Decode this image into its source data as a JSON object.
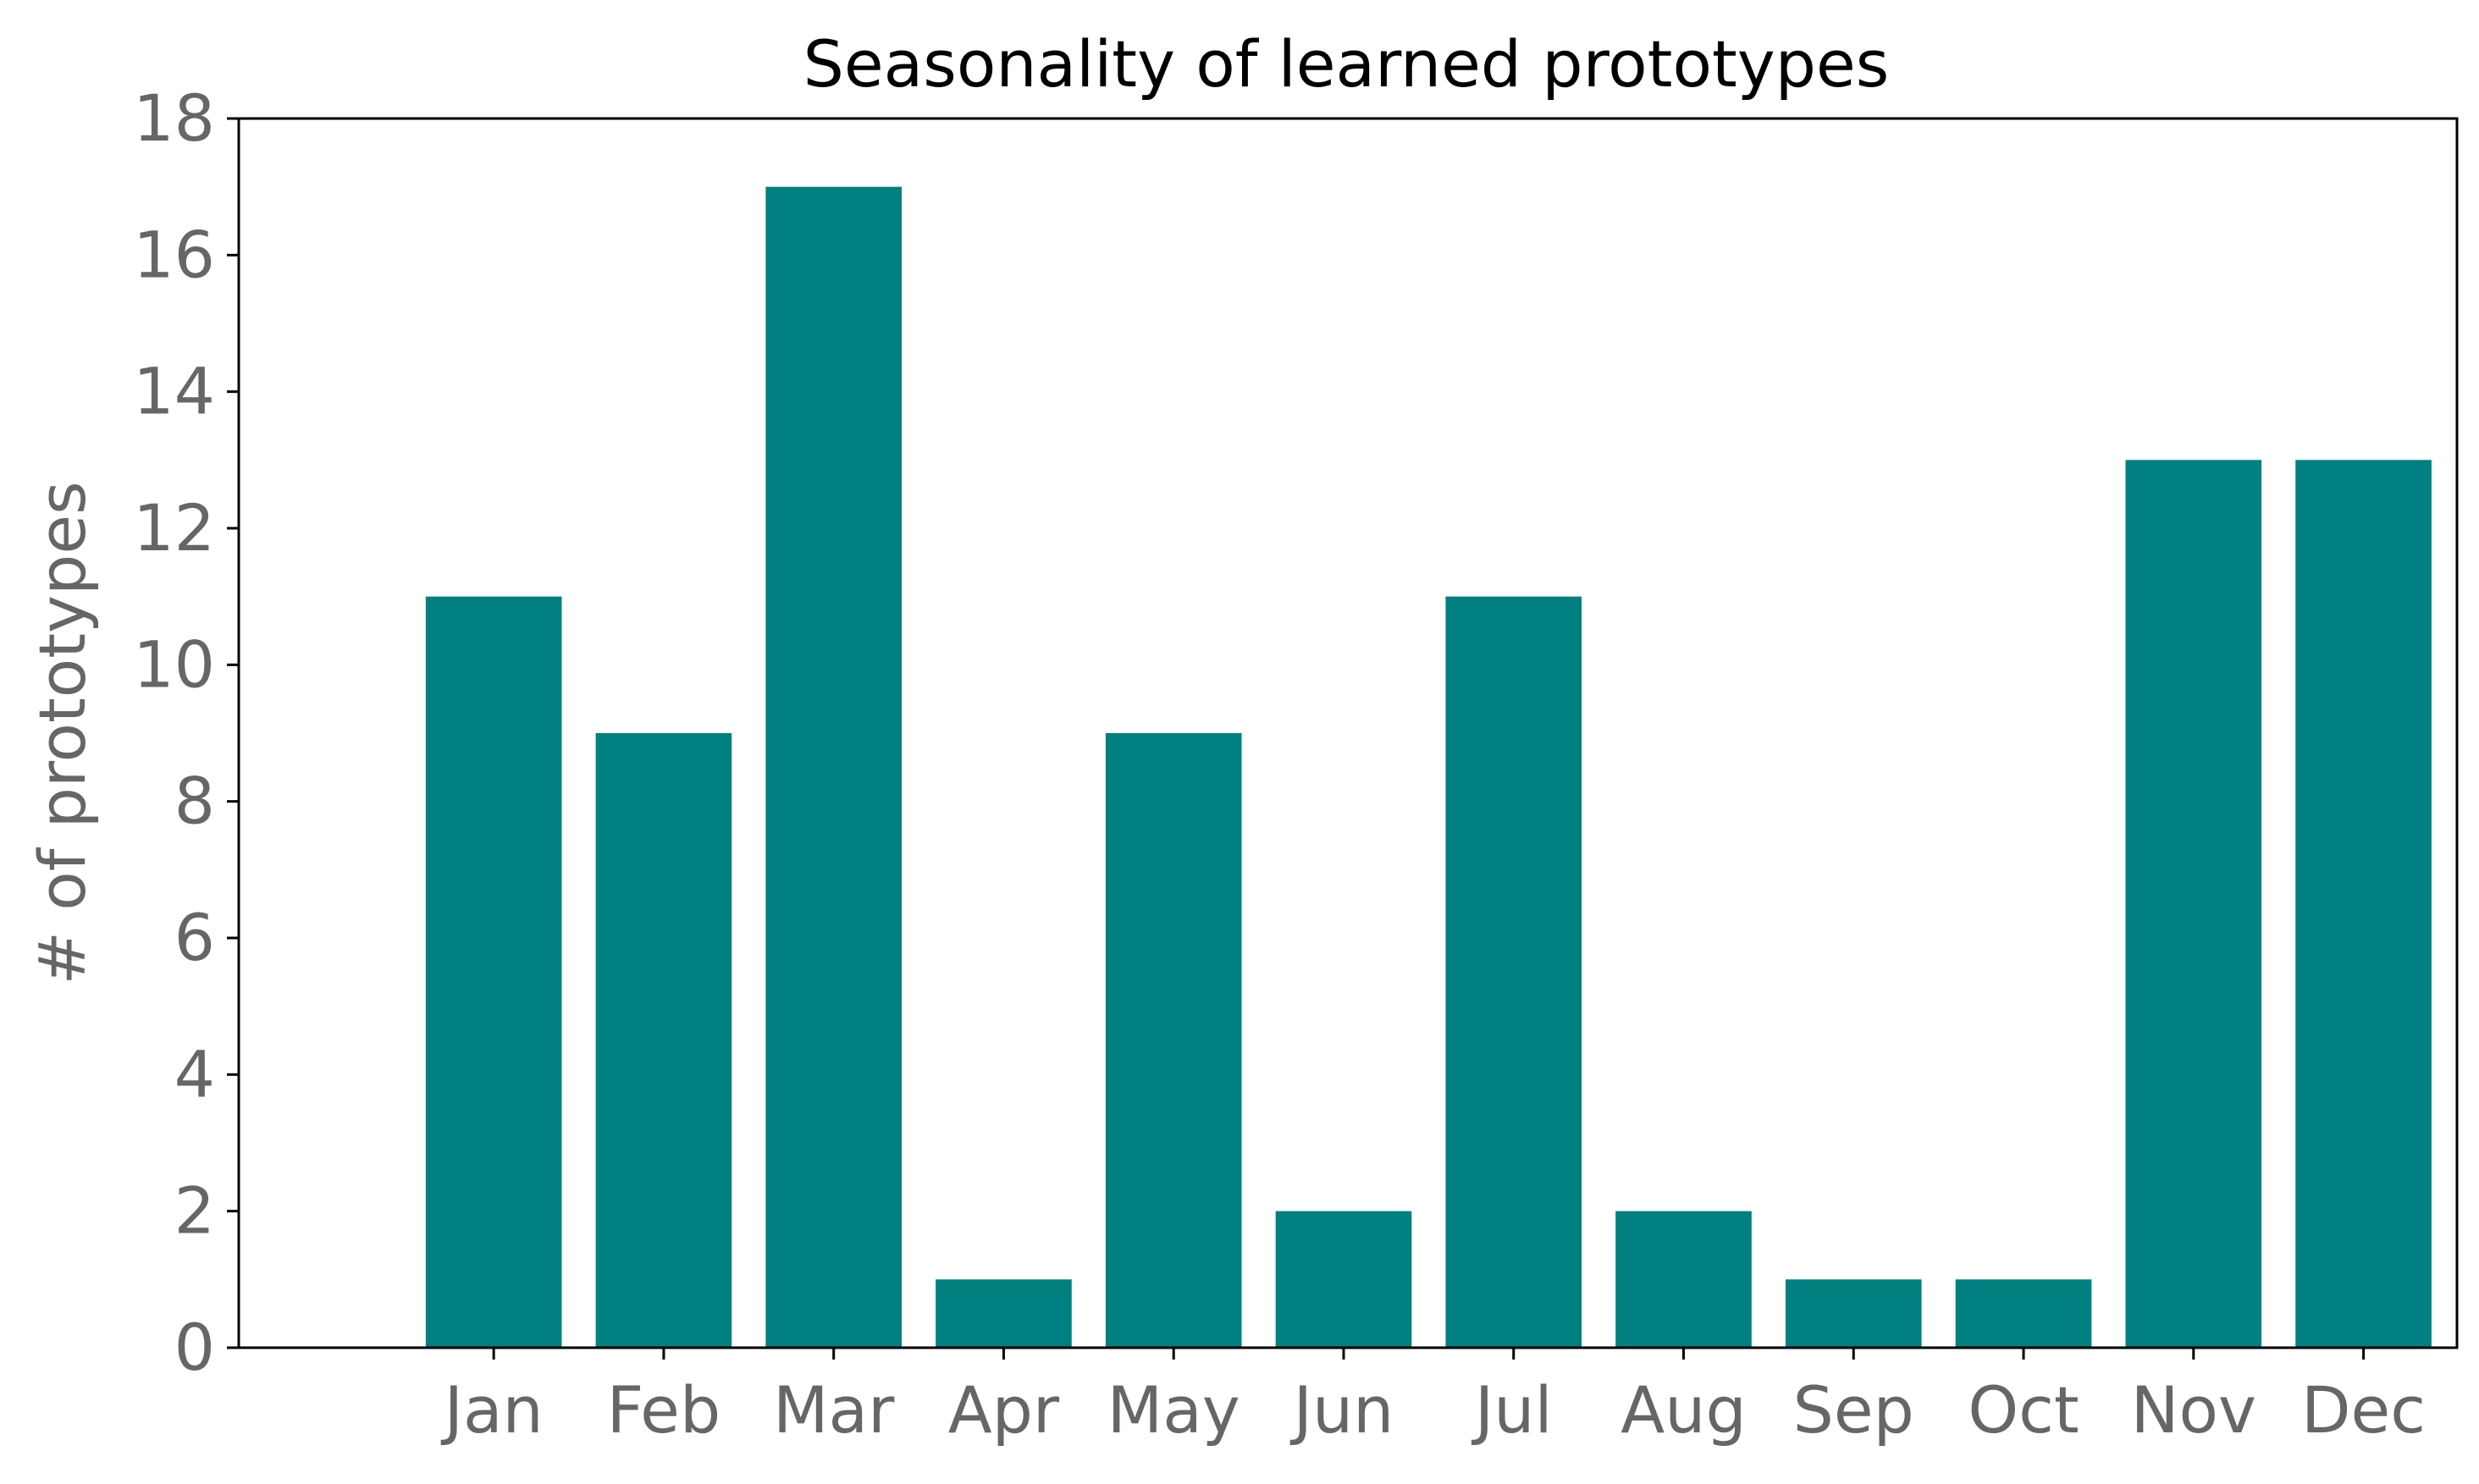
{
  "chart_data": {
    "type": "bar",
    "title": "Seasonality of learned prototypes",
    "xlabel": "",
    "ylabel": "# of prototypes",
    "categories": [
      "Jan",
      "Feb",
      "Mar",
      "Apr",
      "May",
      "Jun",
      "Jul",
      "Aug",
      "Sep",
      "Oct",
      "Nov",
      "Dec"
    ],
    "values": [
      11,
      9,
      17,
      1,
      9,
      2,
      11,
      2,
      1,
      1,
      13,
      13
    ],
    "ylim": [
      0,
      18
    ],
    "yticks": [
      0,
      2,
      4,
      6,
      8,
      10,
      12,
      14,
      16,
      18
    ],
    "grid": false,
    "legend": "none",
    "bar_color": "#008080",
    "axis_color": "#000000",
    "tick_label_color": "#666666"
  }
}
